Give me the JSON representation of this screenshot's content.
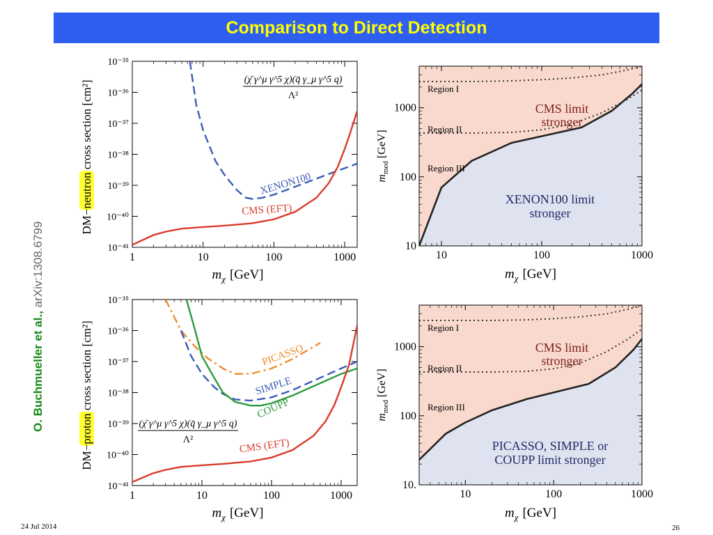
{
  "slide": {
    "title": "Comparison to Direct Detection",
    "authors": "O. Buchmueller et al.,",
    "arxiv": "arXiv:1308.6799",
    "date": "24 Jul 2014",
    "page": "26"
  },
  "colors": {
    "title_bar": "#2f5ff0",
    "title_text": "#ffff00",
    "cms": "#d93b2b",
    "xenon": "#3b5bb5",
    "picasso": "#ee8a2a",
    "coupp": "#2a9a3a",
    "cms_region": "#f9d9cd",
    "dd_region": "#dfe3f0",
    "highlight": "#ffff33"
  },
  "chart_data": [
    {
      "type": "line",
      "panel": "top-left",
      "xlabel": "m_χ [GeV]",
      "xlabel_base": "m",
      "xlabel_sub": "χ",
      "xlabel_unit": "[GeV]",
      "ylabel_prefix": "DM−",
      "ylabel_highlight": "neutron",
      "ylabel_suffix": " cross section [cm²]",
      "x_scale": "log",
      "y_scale": "log",
      "xlim": [
        1,
        1500
      ],
      "ylim": [
        1e-41,
        1e-35
      ],
      "x_ticks": [
        {
          "v": 1,
          "label": "1"
        },
        {
          "v": 10,
          "label": "10"
        },
        {
          "v": 100,
          "label": "100"
        },
        {
          "v": 1000,
          "label": "1000"
        }
      ],
      "y_ticks": [
        {
          "exp": -35,
          "label": "10⁻³⁵"
        },
        {
          "exp": -36,
          "label": "10⁻³⁶"
        },
        {
          "exp": -37,
          "label": "10⁻³⁷"
        },
        {
          "exp": -38,
          "label": "10⁻³⁸"
        },
        {
          "exp": -39,
          "label": "10⁻³⁹"
        },
        {
          "exp": -40,
          "label": "10⁻⁴⁰"
        },
        {
          "exp": -41,
          "label": "10⁻⁴¹"
        }
      ],
      "operator_num": "(χ̄ γ^μ γ^5 χ)(q̄ γ_μ γ^5 q)",
      "operator_den": "Λ²",
      "series": [
        {
          "name": "XENON100",
          "style": "dashed",
          "color": "#3b5bb5",
          "x": [
            6.5,
            8,
            10,
            15,
            20,
            30,
            40,
            50,
            70,
            100,
            200,
            500,
            1500
          ],
          "y": [
            1e-35,
            4e-37,
            6e-38,
            6e-39,
            2.2e-39,
            7e-40,
            4e-40,
            3.6e-40,
            4e-40,
            5e-40,
            9e-40,
            2e-39,
            5e-39
          ]
        },
        {
          "name": "CMS (EFT)",
          "style": "solid",
          "color": "#d93b2b",
          "x": [
            1,
            2,
            3,
            5,
            10,
            20,
            50,
            100,
            200,
            400,
            600,
            800,
            1000,
            1200,
            1500
          ],
          "y": [
            1.2e-41,
            2.5e-41,
            3.2e-41,
            4e-41,
            4.5e-41,
            5e-41,
            6e-41,
            8e-41,
            1.4e-40,
            4e-40,
            1.2e-39,
            4e-39,
            1.5e-38,
            5e-38,
            2.5e-37
          ]
        }
      ],
      "labels": [
        {
          "series": "XENON100",
          "text": "XENON100"
        },
        {
          "series": "CMS (EFT)",
          "text": "CMS (EFT)"
        }
      ]
    },
    {
      "type": "area",
      "panel": "top-right",
      "xlabel": "m_χ [GeV]",
      "xlabel_base": "m",
      "xlabel_sub": "χ",
      "xlabel_unit": "[GeV]",
      "ylabel_base": "m",
      "ylabel_sub": "med",
      "ylabel_unit": "[GeV]",
      "x_scale": "log",
      "y_scale": "log",
      "xlim": [
        6,
        1000
      ],
      "ylim": [
        10,
        4000
      ],
      "x_ticks": [
        {
          "v": 10,
          "label": "10"
        },
        {
          "v": 100,
          "label": "100"
        },
        {
          "v": 1000,
          "label": "1000"
        }
      ],
      "y_ticks": [
        {
          "v": 10,
          "label": "10"
        },
        {
          "v": 100,
          "label": "100"
        },
        {
          "v": 1000,
          "label": "1000"
        }
      ],
      "boundary": {
        "x": [
          6,
          10,
          20,
          50,
          250,
          500,
          800,
          1000
        ],
        "y": [
          10,
          70,
          170,
          310,
          520,
          900,
          1600,
          2200
        ]
      },
      "region_lines": [
        {
          "x": [
            6,
            20,
            50,
            100,
            200,
            400,
            700,
            1000
          ],
          "y": [
            2400,
            2400,
            2450,
            2550,
            2700,
            3000,
            3500,
            4000
          ]
        },
        {
          "x": [
            6,
            20,
            50,
            100,
            200,
            400,
            700,
            1000
          ],
          "y": [
            430,
            430,
            440,
            480,
            580,
            850,
            1300,
            1800
          ]
        }
      ],
      "region_labels": [
        "Region I",
        "Region II",
        "Region III"
      ],
      "cms_text": [
        "CMS limit",
        "stronger"
      ],
      "dd_text": [
        "XENON100 limit",
        "stronger"
      ]
    },
    {
      "type": "line",
      "panel": "bottom-left",
      "xlabel": "m_χ [GeV]",
      "xlabel_base": "m",
      "xlabel_sub": "χ",
      "xlabel_unit": "[GeV]",
      "ylabel_prefix": "DM−",
      "ylabel_highlight": "proton",
      "ylabel_suffix": " cross section [cm²]",
      "x_scale": "log",
      "y_scale": "log",
      "xlim": [
        1,
        1700
      ],
      "ylim": [
        1e-41,
        1e-35
      ],
      "x_ticks": [
        {
          "v": 1,
          "label": "1"
        },
        {
          "v": 10,
          "label": "10"
        },
        {
          "v": 100,
          "label": "100"
        },
        {
          "v": 1000,
          "label": "1000"
        }
      ],
      "y_ticks": [
        {
          "exp": -35,
          "label": "10⁻³⁵"
        },
        {
          "exp": -36,
          "label": "10⁻³⁶"
        },
        {
          "exp": -37,
          "label": "10⁻³⁷"
        },
        {
          "exp": -38,
          "label": "10⁻³⁸"
        },
        {
          "exp": -39,
          "label": "10⁻³⁹"
        },
        {
          "exp": -40,
          "label": "10⁻⁴⁰"
        },
        {
          "exp": -41,
          "label": "10⁻⁴¹"
        }
      ],
      "operator_num": "(χ̄ γ^μ γ^5 χ)(q̄ γ_μ γ^5 q)",
      "operator_den": "Λ²",
      "series": [
        {
          "name": "PICASSO",
          "style": "dashdot",
          "color": "#ee8a2a",
          "x": [
            3,
            5,
            8,
            12,
            20,
            30,
            50,
            100,
            200,
            400,
            500
          ],
          "y": [
            1e-35,
            1e-36,
            3e-37,
            1.3e-37,
            6e-38,
            4e-38,
            4e-38,
            6e-38,
            1.2e-37,
            3e-37,
            4e-37
          ]
        },
        {
          "name": "SIMPLE",
          "style": "dashed",
          "color": "#3b5bb5",
          "x": [
            5,
            7,
            10,
            15,
            20,
            30,
            50,
            100,
            200,
            500,
            1000,
            1700
          ],
          "y": [
            1e-36,
            1.5e-37,
            4e-38,
            1.5e-38,
            9e-39,
            6e-39,
            5.5e-39,
            7e-39,
            1.2e-38,
            3e-38,
            6e-38,
            1e-37
          ]
        },
        {
          "name": "COUPP",
          "style": "solid",
          "color": "#2a9a3a",
          "x": [
            6,
            8,
            10,
            15,
            20,
            30,
            50,
            70,
            100,
            200,
            500,
            1000,
            1700
          ],
          "y": [
            1e-35,
            1e-36,
            1.5e-37,
            3e-38,
            1e-38,
            5e-39,
            3.8e-39,
            3.8e-39,
            4.5e-39,
            8e-39,
            2e-38,
            4e-38,
            6e-38
          ]
        },
        {
          "name": "CMS (EFT)",
          "style": "solid",
          "color": "#d93b2b",
          "x": [
            1,
            2,
            3,
            5,
            10,
            20,
            50,
            100,
            200,
            400,
            600,
            800,
            1000,
            1300,
            1700
          ],
          "y": [
            1.3e-41,
            2.5e-41,
            3.2e-41,
            4e-41,
            4.5e-41,
            5e-41,
            6e-41,
            8e-41,
            1.4e-40,
            4e-40,
            1.2e-39,
            4e-39,
            1.5e-38,
            8e-38,
            1.5e-36
          ]
        }
      ],
      "labels": [
        {
          "series": "PICASSO",
          "text": "PICASSO"
        },
        {
          "series": "SIMPLE",
          "text": "SIMPLE"
        },
        {
          "series": "COUPP",
          "text": "COUPP"
        },
        {
          "series": "CMS (EFT)",
          "text": "CMS (EFT)"
        }
      ]
    },
    {
      "type": "area",
      "panel": "bottom-right",
      "xlabel": "m_χ [GeV]",
      "xlabel_base": "m",
      "xlabel_sub": "χ",
      "xlabel_unit": "[GeV]",
      "ylabel_base": "m",
      "ylabel_sub": "med",
      "ylabel_unit": "[GeV]",
      "x_scale": "log",
      "y_scale": "log",
      "xlim": [
        3,
        1000
      ],
      "ylim": [
        10,
        4000
      ],
      "x_ticks": [
        {
          "v": 10,
          "label": "10"
        },
        {
          "v": 100,
          "label": "100"
        },
        {
          "v": 1000,
          "label": "1000"
        }
      ],
      "y_ticks": [
        {
          "v": 10,
          "label": "10."
        },
        {
          "v": 100,
          "label": "100"
        },
        {
          "v": 1000,
          "label": "1000"
        }
      ],
      "boundary": {
        "x": [
          3,
          6,
          10,
          20,
          50,
          250,
          500,
          800,
          1000
        ],
        "y": [
          23,
          55,
          80,
          120,
          175,
          290,
          500,
          900,
          1300
        ]
      },
      "region_lines": [
        {
          "x": [
            3,
            20,
            50,
            100,
            200,
            400,
            700,
            1000
          ],
          "y": [
            2400,
            2400,
            2450,
            2550,
            2700,
            3000,
            3500,
            4000
          ]
        },
        {
          "x": [
            3,
            20,
            50,
            100,
            200,
            400,
            700,
            1000
          ],
          "y": [
            430,
            430,
            440,
            480,
            580,
            850,
            1300,
            1800
          ]
        }
      ],
      "region_labels": [
        "Region I",
        "Region II",
        "Region III"
      ],
      "cms_text": [
        "CMS limit",
        "stronger"
      ],
      "dd_text": [
        "PICASSO, SIMPLE or",
        "COUPP limit stronger"
      ]
    }
  ]
}
